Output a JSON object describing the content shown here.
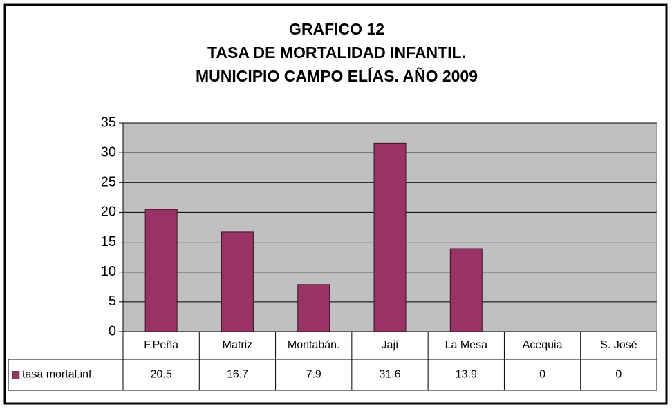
{
  "chart_data": {
    "type": "bar",
    "title": [
      "GRAFICO 12",
      "TASA DE MORTALIDAD INFANTIL.",
      "MUNICIPIO CAMPO ELÍAS. AÑO 2009"
    ],
    "categories": [
      "F.Peña",
      "Matriz",
      "Montabán.",
      "Jají",
      "La Mesa",
      "Acequia",
      "S. José"
    ],
    "series": [
      {
        "name": "tasa mortal.inf.",
        "color": "#993366",
        "values": [
          20.5,
          16.7,
          7.9,
          31.6,
          13.9,
          0,
          0
        ]
      }
    ],
    "ylim": [
      0,
      35
    ],
    "yticks": [
      0,
      5,
      10,
      15,
      20,
      25,
      30,
      35
    ],
    "grid": true
  }
}
